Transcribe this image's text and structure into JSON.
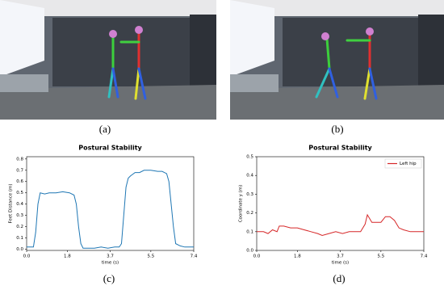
{
  "panels": {
    "labels": [
      "(a)",
      "(b)",
      "(c)",
      "(d)"
    ]
  },
  "chart_data": [
    {
      "type": "line",
      "title": "Postural Stability",
      "x_label": "time (s)",
      "y_label": "Feet Distance (m)",
      "x": [
        0,
        0.3,
        0.4,
        0.5,
        0.6,
        0.8,
        1.0,
        1.3,
        1.6,
        1.9,
        2.1,
        2.2,
        2.3,
        2.4,
        2.5,
        2.7,
        3.0,
        3.3,
        3.6,
        3.9,
        4.1,
        4.2,
        4.3,
        4.4,
        4.5,
        4.6,
        4.8,
        5.0,
        5.2,
        5.5,
        5.8,
        6.0,
        6.1,
        6.2,
        6.3,
        6.4,
        6.5,
        6.6,
        6.8,
        7.0,
        7.4
      ],
      "series": [
        {
          "color": "#1f77b4",
          "values": [
            0.02,
            0.02,
            0.15,
            0.4,
            0.5,
            0.49,
            0.5,
            0.5,
            0.51,
            0.5,
            0.48,
            0.4,
            0.2,
            0.05,
            0.01,
            0.01,
            0.01,
            0.02,
            0.01,
            0.02,
            0.02,
            0.05,
            0.3,
            0.55,
            0.63,
            0.65,
            0.68,
            0.68,
            0.7,
            0.7,
            0.69,
            0.69,
            0.68,
            0.67,
            0.6,
            0.4,
            0.2,
            0.05,
            0.03,
            0.02,
            0.02
          ]
        }
      ],
      "xlim": [
        0,
        7.4
      ],
      "xticks": [
        {
          "value": 0,
          "label": "0.0"
        },
        1.8,
        3.7,
        5.5,
        7.4
      ],
      "ylim": [
        -0.01,
        0.82
      ],
      "yticks": [
        {
          "value": 0,
          "label": "0.0"
        },
        0.1,
        0.2,
        0.3,
        0.4,
        0.5,
        0.6,
        0.7,
        0.8
      ]
    },
    {
      "type": "line",
      "title": "Postural Stability",
      "x_label": "time (s)",
      "y_label": "Coordinate y (m)",
      "x": [
        0,
        0.3,
        0.5,
        0.7,
        0.9,
        1.0,
        1.2,
        1.5,
        1.8,
        2.1,
        2.4,
        2.7,
        2.9,
        3.2,
        3.5,
        3.8,
        4.1,
        4.4,
        4.6,
        4.8,
        4.9,
        5.1,
        5.3,
        5.5,
        5.7,
        5.9,
        6.1,
        6.3,
        6.5,
        6.8,
        7.1,
        7.4
      ],
      "series": [
        {
          "name": "Left hip",
          "color": "#d62728",
          "values": [
            0.1,
            0.1,
            0.09,
            0.11,
            0.1,
            0.13,
            0.13,
            0.12,
            0.12,
            0.11,
            0.1,
            0.09,
            0.08,
            0.09,
            0.1,
            0.09,
            0.1,
            0.1,
            0.1,
            0.14,
            0.19,
            0.15,
            0.15,
            0.15,
            0.18,
            0.18,
            0.16,
            0.12,
            0.11,
            0.1,
            0.1,
            0.1
          ]
        }
      ],
      "legend": "upper right",
      "xlim": [
        0,
        7.4
      ],
      "xticks": [
        {
          "value": 0,
          "label": "0.0"
        },
        1.8,
        3.7,
        5.5,
        7.4
      ],
      "ylim": [
        0,
        0.5
      ],
      "yticks": [
        {
          "value": 0,
          "label": "0.0"
        },
        0.1,
        0.2,
        0.3,
        0.4,
        0.5
      ]
    }
  ]
}
